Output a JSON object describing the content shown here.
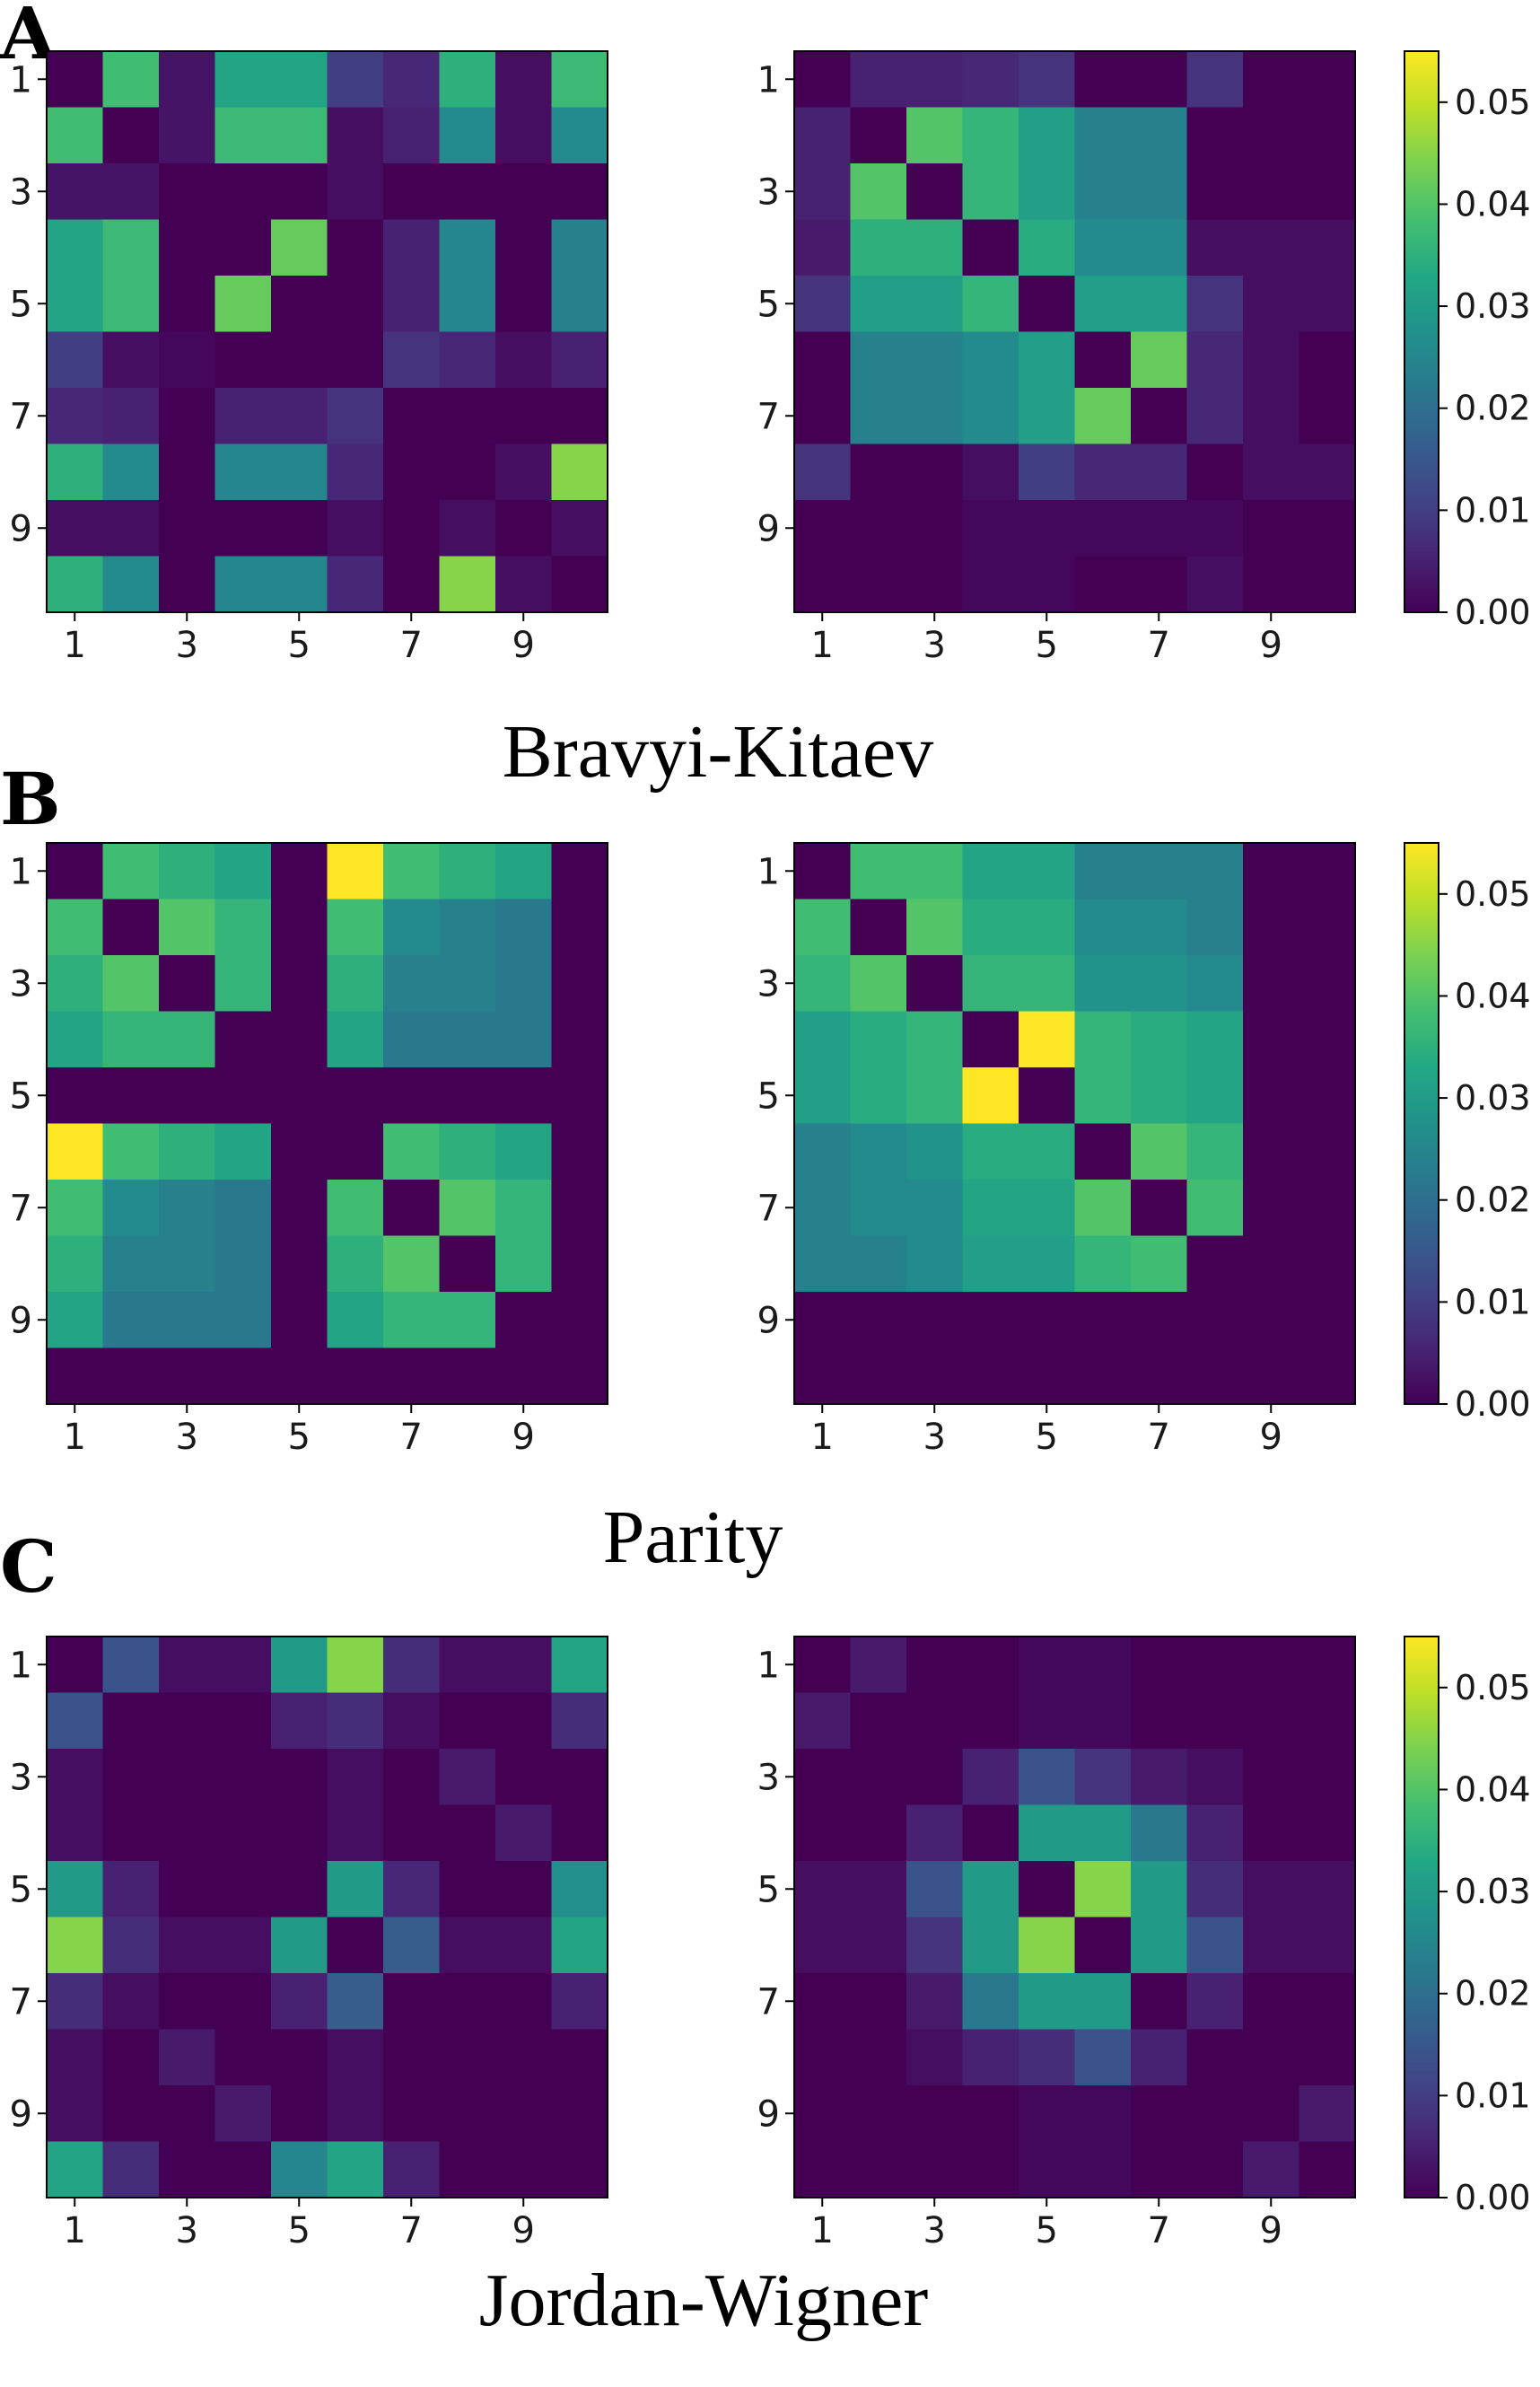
{
  "panels": [
    {
      "letter": "A",
      "caption": "Bravyi-Kitaev"
    },
    {
      "letter": "B",
      "caption": "Parity"
    },
    {
      "letter": "C",
      "caption": "Jordan-Wigner"
    }
  ],
  "colorbar": {
    "ticks": [
      "0.00",
      "0.01",
      "0.02",
      "0.03",
      "0.04",
      "0.05"
    ],
    "min": 0.0,
    "max": 0.055,
    "colormap": "viridis"
  },
  "chart_data": [
    {
      "type": "heatmap",
      "panel": "A",
      "side": "left",
      "title": "",
      "xlabel": "",
      "ylabel": "",
      "x_ticks": [
        "1",
        "3",
        "5",
        "7",
        "9"
      ],
      "y_ticks": [
        "1",
        "3",
        "5",
        "7",
        "9"
      ],
      "values": [
        [
          0.0,
          0.038,
          0.003,
          0.032,
          0.032,
          0.01,
          0.006,
          0.035,
          0.002,
          0.037
        ],
        [
          0.038,
          0.0,
          0.003,
          0.037,
          0.037,
          0.002,
          0.005,
          0.026,
          0.002,
          0.026
        ],
        [
          0.003,
          0.003,
          0.0,
          0.0,
          0.0,
          0.002,
          0.0,
          0.0,
          0.0,
          0.0
        ],
        [
          0.032,
          0.037,
          0.0,
          0.0,
          0.042,
          0.0,
          0.005,
          0.025,
          0.0,
          0.024
        ],
        [
          0.032,
          0.037,
          0.0,
          0.042,
          0.0,
          0.0,
          0.005,
          0.025,
          0.0,
          0.024
        ],
        [
          0.01,
          0.002,
          0.001,
          0.0,
          0.0,
          0.0,
          0.008,
          0.006,
          0.002,
          0.005
        ],
        [
          0.006,
          0.005,
          0.0,
          0.005,
          0.005,
          0.008,
          0.0,
          0.0,
          0.0,
          0.0
        ],
        [
          0.035,
          0.026,
          0.0,
          0.025,
          0.025,
          0.006,
          0.0,
          0.0,
          0.002,
          0.045
        ],
        [
          0.002,
          0.002,
          0.0,
          0.0,
          0.0,
          0.002,
          0.0,
          0.002,
          0.0,
          0.002
        ],
        [
          0.035,
          0.026,
          0.0,
          0.025,
          0.025,
          0.006,
          0.0,
          0.045,
          0.002,
          0.0
        ]
      ]
    },
    {
      "type": "heatmap",
      "panel": "A",
      "side": "right",
      "title": "",
      "xlabel": "",
      "ylabel": "",
      "x_ticks": [
        "1",
        "3",
        "5",
        "7",
        "9"
      ],
      "y_ticks": [
        "1",
        "3",
        "5",
        "7",
        "9"
      ],
      "values": [
        [
          0.0,
          0.005,
          0.005,
          0.006,
          0.008,
          0.0,
          0.0,
          0.008,
          0.0,
          0.0
        ],
        [
          0.005,
          0.0,
          0.04,
          0.036,
          0.031,
          0.024,
          0.024,
          0.0,
          0.0,
          0.0
        ],
        [
          0.005,
          0.04,
          0.0,
          0.036,
          0.031,
          0.024,
          0.024,
          0.0,
          0.0,
          0.0
        ],
        [
          0.004,
          0.035,
          0.035,
          0.0,
          0.034,
          0.026,
          0.026,
          0.002,
          0.002,
          0.002
        ],
        [
          0.008,
          0.031,
          0.031,
          0.036,
          0.0,
          0.031,
          0.031,
          0.008,
          0.002,
          0.002
        ],
        [
          0.0,
          0.024,
          0.024,
          0.026,
          0.031,
          0.0,
          0.042,
          0.006,
          0.002,
          0.0
        ],
        [
          0.0,
          0.024,
          0.024,
          0.026,
          0.031,
          0.042,
          0.0,
          0.006,
          0.002,
          0.0
        ],
        [
          0.008,
          0.0,
          0.0,
          0.002,
          0.01,
          0.006,
          0.006,
          0.0,
          0.002,
          0.002
        ],
        [
          0.0,
          0.0,
          0.0,
          0.001,
          0.001,
          0.001,
          0.001,
          0.001,
          0.0,
          0.0
        ],
        [
          0.0,
          0.0,
          0.0,
          0.001,
          0.001,
          0.0,
          0.0,
          0.002,
          0.0,
          0.0
        ]
      ]
    },
    {
      "type": "heatmap",
      "panel": "B",
      "side": "left",
      "title": "",
      "xlabel": "",
      "ylabel": "",
      "x_ticks": [
        "1",
        "3",
        "5",
        "7",
        "9"
      ],
      "y_ticks": [
        "1",
        "3",
        "5",
        "7",
        "9"
      ],
      "values": [
        [
          0.0,
          0.038,
          0.035,
          0.032,
          0.0,
          0.055,
          0.038,
          0.035,
          0.032,
          0.0
        ],
        [
          0.038,
          0.0,
          0.04,
          0.036,
          0.0,
          0.038,
          0.026,
          0.024,
          0.022,
          0.0
        ],
        [
          0.035,
          0.04,
          0.0,
          0.036,
          0.0,
          0.035,
          0.024,
          0.024,
          0.022,
          0.0
        ],
        [
          0.032,
          0.036,
          0.036,
          0.0,
          0.0,
          0.032,
          0.022,
          0.022,
          0.022,
          0.0
        ],
        [
          0.0,
          0.0,
          0.0,
          0.0,
          0.0,
          0.0,
          0.0,
          0.0,
          0.0,
          0.0
        ],
        [
          0.055,
          0.038,
          0.035,
          0.032,
          0.0,
          0.0,
          0.038,
          0.035,
          0.032,
          0.0
        ],
        [
          0.038,
          0.026,
          0.024,
          0.022,
          0.0,
          0.038,
          0.0,
          0.04,
          0.036,
          0.0
        ],
        [
          0.035,
          0.024,
          0.024,
          0.022,
          0.0,
          0.035,
          0.04,
          0.0,
          0.036,
          0.0
        ],
        [
          0.032,
          0.022,
          0.022,
          0.022,
          0.0,
          0.032,
          0.036,
          0.036,
          0.0,
          0.0
        ],
        [
          0.0,
          0.0,
          0.0,
          0.0,
          0.0,
          0.0,
          0.0,
          0.0,
          0.0,
          0.0
        ]
      ]
    },
    {
      "type": "heatmap",
      "panel": "B",
      "side": "right",
      "title": "",
      "xlabel": "",
      "ylabel": "",
      "x_ticks": [
        "1",
        "3",
        "5",
        "7",
        "9"
      ],
      "y_ticks": [
        "1",
        "3",
        "5",
        "7",
        "9"
      ],
      "values": [
        [
          0.0,
          0.038,
          0.038,
          0.032,
          0.032,
          0.024,
          0.024,
          0.024,
          0.0,
          0.0
        ],
        [
          0.038,
          0.0,
          0.04,
          0.034,
          0.034,
          0.026,
          0.026,
          0.024,
          0.0,
          0.0
        ],
        [
          0.036,
          0.04,
          0.0,
          0.036,
          0.036,
          0.028,
          0.028,
          0.026,
          0.0,
          0.0
        ],
        [
          0.031,
          0.034,
          0.036,
          0.0,
          0.055,
          0.036,
          0.034,
          0.032,
          0.0,
          0.0
        ],
        [
          0.031,
          0.034,
          0.036,
          0.055,
          0.0,
          0.036,
          0.034,
          0.032,
          0.0,
          0.0
        ],
        [
          0.024,
          0.026,
          0.028,
          0.034,
          0.034,
          0.0,
          0.04,
          0.036,
          0.0,
          0.0
        ],
        [
          0.024,
          0.026,
          0.026,
          0.032,
          0.032,
          0.04,
          0.0,
          0.038,
          0.0,
          0.0
        ],
        [
          0.024,
          0.024,
          0.026,
          0.031,
          0.031,
          0.036,
          0.038,
          0.0,
          0.0,
          0.0
        ],
        [
          0.0,
          0.0,
          0.0,
          0.0,
          0.0,
          0.0,
          0.0,
          0.0,
          0.0,
          0.0
        ],
        [
          0.0,
          0.0,
          0.0,
          0.0,
          0.0,
          0.0,
          0.0,
          0.0,
          0.0,
          0.0
        ]
      ]
    },
    {
      "type": "heatmap",
      "panel": "C",
      "side": "left",
      "title": "",
      "xlabel": "",
      "ylabel": "",
      "x_ticks": [
        "1",
        "3",
        "5",
        "7",
        "9"
      ],
      "y_ticks": [
        "1",
        "3",
        "5",
        "7",
        "9"
      ],
      "values": [
        [
          0.0,
          0.014,
          0.002,
          0.002,
          0.03,
          0.045,
          0.007,
          0.002,
          0.002,
          0.032
        ],
        [
          0.014,
          0.0,
          0.0,
          0.0,
          0.005,
          0.007,
          0.002,
          0.0,
          0.0,
          0.007
        ],
        [
          0.002,
          0.0,
          0.0,
          0.0,
          0.0,
          0.002,
          0.0,
          0.004,
          0.0,
          0.0
        ],
        [
          0.002,
          0.0,
          0.0,
          0.0,
          0.0,
          0.002,
          0.0,
          0.0,
          0.004,
          0.0
        ],
        [
          0.03,
          0.005,
          0.0,
          0.0,
          0.0,
          0.03,
          0.006,
          0.0,
          0.0,
          0.027
        ],
        [
          0.045,
          0.007,
          0.002,
          0.002,
          0.03,
          0.0,
          0.016,
          0.002,
          0.002,
          0.032
        ],
        [
          0.007,
          0.002,
          0.0,
          0.0,
          0.005,
          0.016,
          0.0,
          0.0,
          0.0,
          0.005
        ],
        [
          0.002,
          0.0,
          0.004,
          0.0,
          0.0,
          0.002,
          0.0,
          0.0,
          0.0,
          0.0
        ],
        [
          0.002,
          0.0,
          0.0,
          0.004,
          0.0,
          0.002,
          0.0,
          0.0,
          0.0,
          0.0
        ],
        [
          0.032,
          0.007,
          0.0,
          0.0,
          0.025,
          0.032,
          0.005,
          0.0,
          0.0,
          0.0
        ]
      ]
    },
    {
      "type": "heatmap",
      "panel": "C",
      "side": "right",
      "title": "",
      "xlabel": "",
      "ylabel": "",
      "x_ticks": [
        "1",
        "3",
        "5",
        "7",
        "9"
      ],
      "y_ticks": [
        "1",
        "3",
        "5",
        "7",
        "9"
      ],
      "values": [
        [
          0.0,
          0.004,
          0.0,
          0.0,
          0.001,
          0.001,
          0.0,
          0.0,
          0.0,
          0.0
        ],
        [
          0.004,
          0.0,
          0.0,
          0.0,
          0.001,
          0.001,
          0.0,
          0.0,
          0.0,
          0.0
        ],
        [
          0.0,
          0.0,
          0.0,
          0.005,
          0.014,
          0.008,
          0.004,
          0.002,
          0.0,
          0.0
        ],
        [
          0.0,
          0.0,
          0.005,
          0.0,
          0.03,
          0.03,
          0.022,
          0.005,
          0.0,
          0.0
        ],
        [
          0.002,
          0.002,
          0.014,
          0.03,
          0.0,
          0.045,
          0.03,
          0.007,
          0.002,
          0.002
        ],
        [
          0.002,
          0.002,
          0.008,
          0.03,
          0.045,
          0.0,
          0.03,
          0.014,
          0.002,
          0.002
        ],
        [
          0.0,
          0.0,
          0.004,
          0.022,
          0.03,
          0.03,
          0.0,
          0.005,
          0.0,
          0.0
        ],
        [
          0.0,
          0.0,
          0.002,
          0.005,
          0.007,
          0.014,
          0.005,
          0.0,
          0.0,
          0.0
        ],
        [
          0.0,
          0.0,
          0.0,
          0.0,
          0.001,
          0.001,
          0.0,
          0.0,
          0.0,
          0.004
        ],
        [
          0.0,
          0.0,
          0.0,
          0.0,
          0.001,
          0.001,
          0.0,
          0.0,
          0.004,
          0.0
        ]
      ]
    }
  ]
}
